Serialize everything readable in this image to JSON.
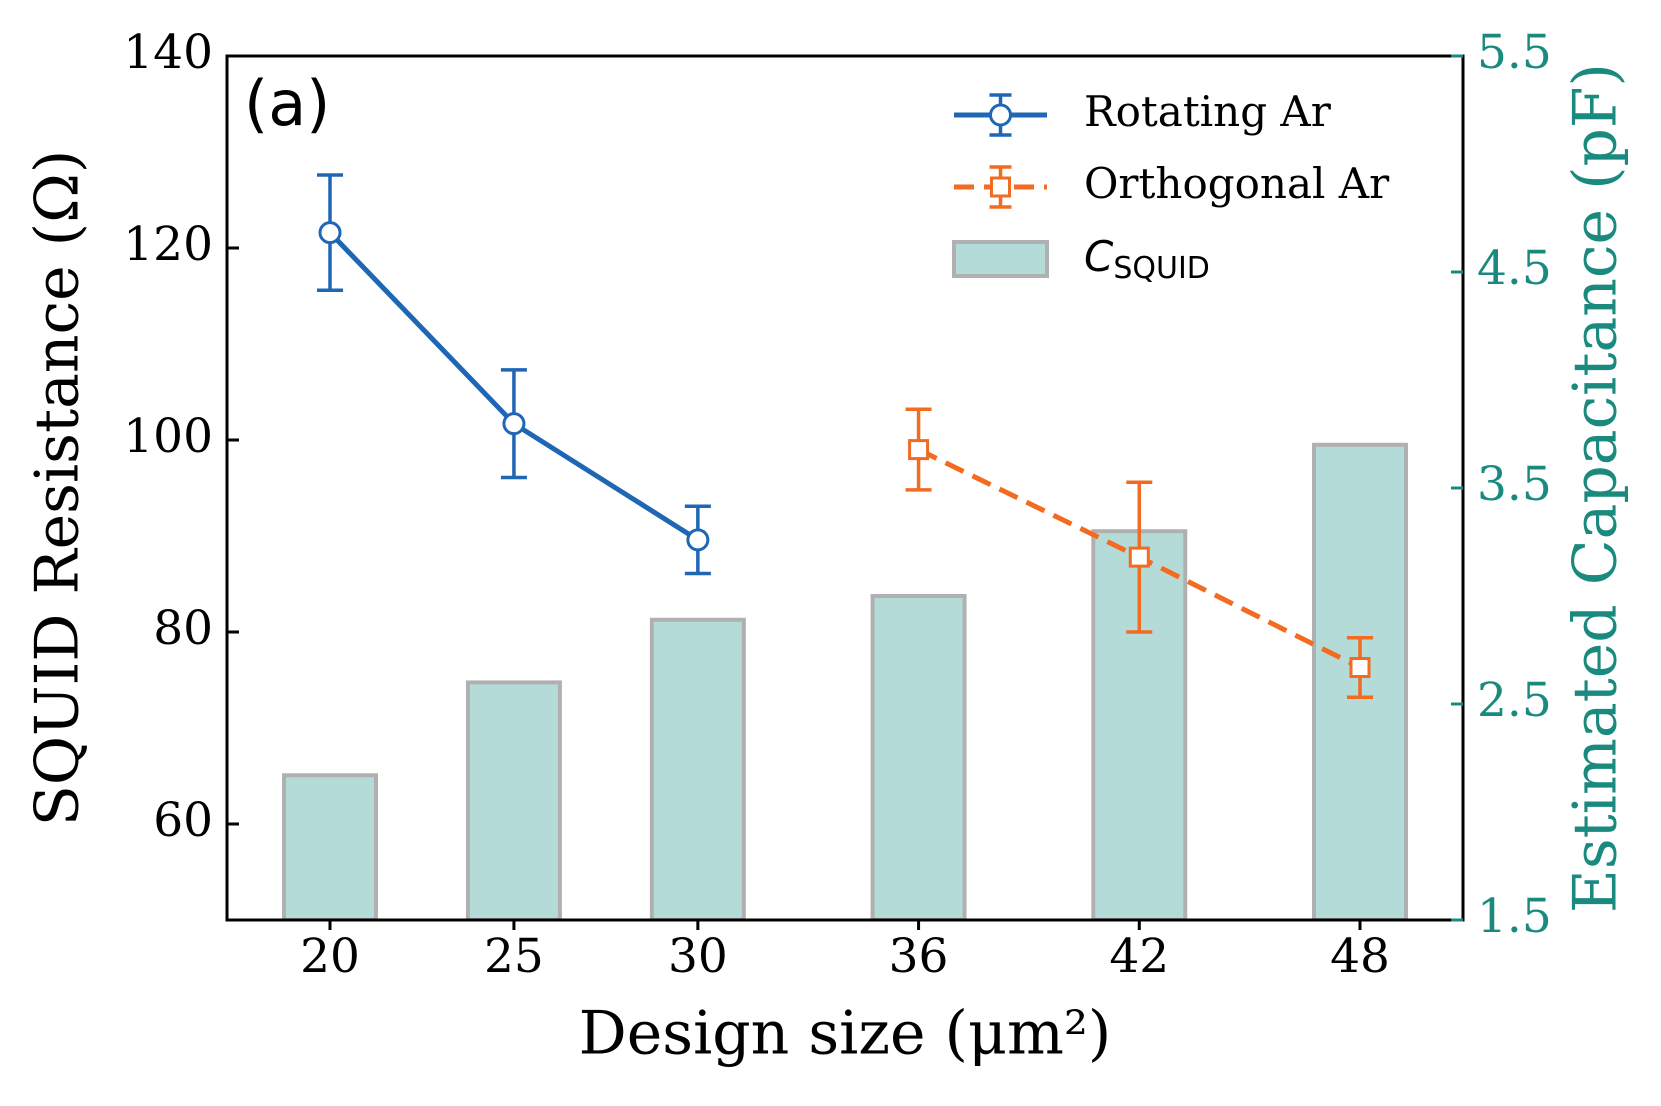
{
  "chart_data": {
    "type": "line",
    "annotation": "(a)",
    "xlabel": "Design size (μm²)",
    "ylabel": "SQUID Resistance (Ω)",
    "y2label": "Estimated Capacitance (pF)",
    "xlim": [
      17.2,
      50.8
    ],
    "xticks": [
      20,
      25,
      30,
      36,
      42,
      48
    ],
    "ylim": [
      50,
      140
    ],
    "yticks": [
      60,
      80,
      100,
      120,
      140
    ],
    "y2lim": [
      1.5,
      5.5
    ],
    "y2ticks": [
      1.5,
      2.5,
      3.5,
      4.5,
      5.5
    ],
    "y2color": "#1a8a7f",
    "legend": "upper right",
    "series": [
      {
        "name": "Rotating Ar",
        "type": "line",
        "color": "#1f66b5",
        "linestyle": "solid",
        "marker": "circle",
        "x": [
          20,
          25,
          30
        ],
        "values": [
          121.6,
          101.7,
          89.6
        ],
        "errors": [
          6.0,
          5.6,
          3.5
        ]
      },
      {
        "name": "Orthogonal Ar",
        "type": "line",
        "color": "#f26b21",
        "linestyle": "dashed",
        "marker": "square",
        "x": [
          36,
          42,
          48
        ],
        "values": [
          99.0,
          87.8,
          76.3
        ],
        "errors": [
          4.2,
          7.8,
          3.1
        ]
      },
      {
        "name": "C",
        "name_sub": "SQUID",
        "type": "bar",
        "axis": "y2",
        "color": "#b5dbd8",
        "edgecolor": "#b0b0b0",
        "width": 2.5,
        "x": [
          20,
          25,
          30,
          36,
          42,
          48
        ],
        "values": [
          2.17,
          2.6,
          2.89,
          3.0,
          3.3,
          3.7
        ]
      }
    ]
  }
}
